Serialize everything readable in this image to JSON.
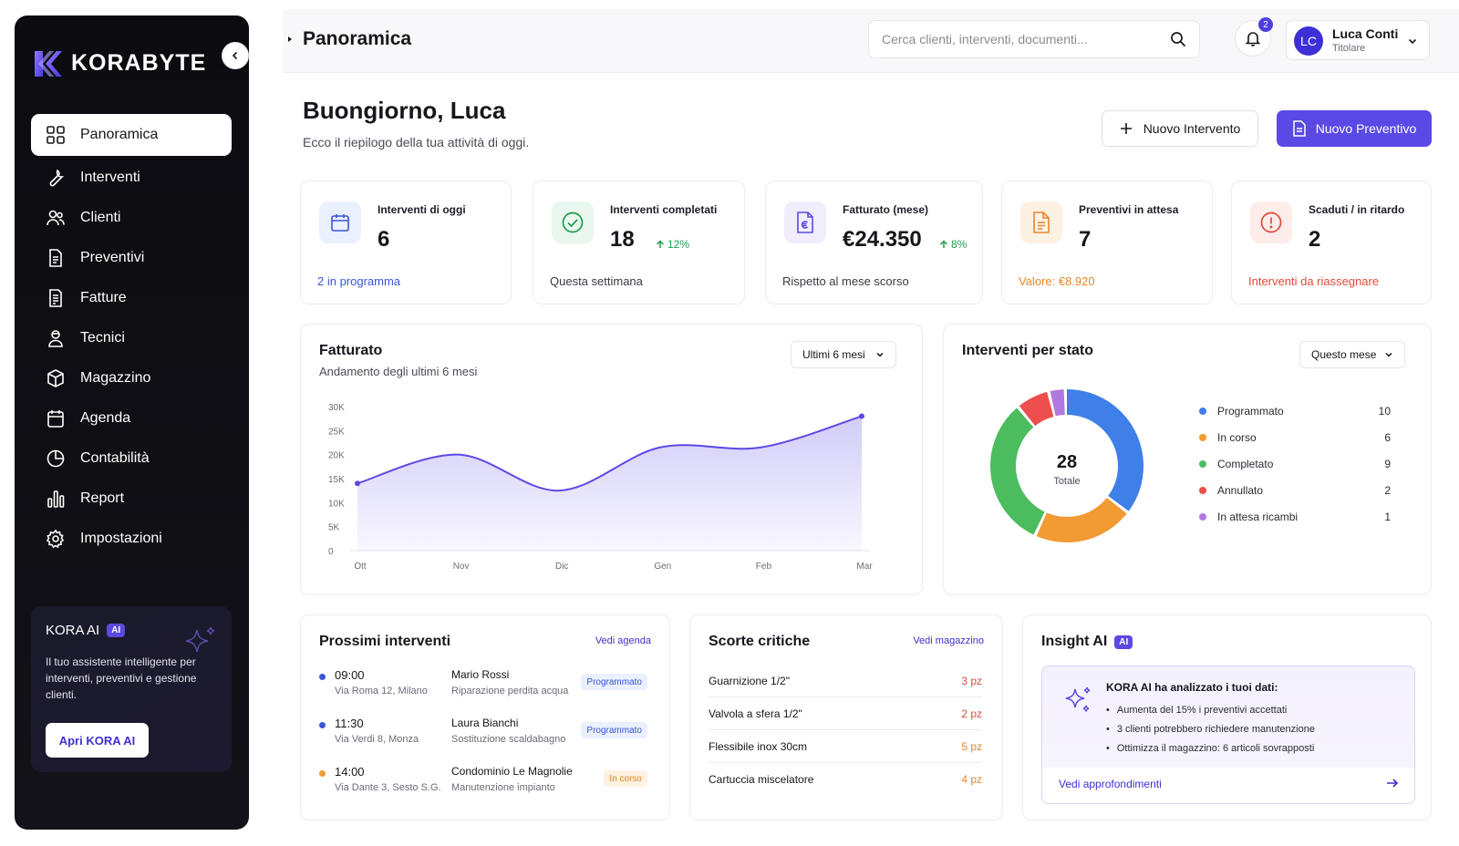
{
  "brand": {
    "name": "KORABYTE"
  },
  "sidebar": {
    "items": [
      {
        "label": "Panoramica",
        "icon": "grid-icon"
      },
      {
        "label": "Interventi",
        "icon": "wrench-icon"
      },
      {
        "label": "Clienti",
        "icon": "users-icon"
      },
      {
        "label": "Preventivi",
        "icon": "document-icon"
      },
      {
        "label": "Fatture",
        "icon": "invoice-icon"
      },
      {
        "label": "Tecnici",
        "icon": "technician-icon"
      },
      {
        "label": "Magazzino",
        "icon": "box-icon"
      },
      {
        "label": "Agenda",
        "icon": "calendar-icon"
      },
      {
        "label": "Contabilità",
        "icon": "pie-chart-icon"
      },
      {
        "label": "Report",
        "icon": "bar-chart-icon"
      },
      {
        "label": "Impostazioni",
        "icon": "gear-icon"
      }
    ],
    "ai_card": {
      "title": "KORA AI",
      "badge": "AI",
      "description": "Il tuo assistente intelligente per interventi, preventivi e gestione clienti.",
      "button": "Apri KORA AI"
    }
  },
  "header": {
    "title": "Panoramica",
    "search_placeholder": "Cerca clienti, interventi, documenti...",
    "notifications": "2",
    "user": {
      "initials": "LC",
      "name": "Luca Conti",
      "role": "Titolare"
    }
  },
  "greeting": {
    "title": "Buongiorno, Luca",
    "subtitle": "Ecco il riepilogo della tua attività di oggi.",
    "btn_new_intervention": "Nuovo Intervento",
    "btn_new_quote": "Nuovo Preventivo"
  },
  "stats": [
    {
      "label": "Interventi di oggi",
      "value": "6",
      "trend": "",
      "footer": "2 in programma",
      "footer_color": "#3a55d6",
      "icon": "calendar-icon"
    },
    {
      "label": "Interventi completati",
      "value": "18",
      "trend": "12%",
      "footer": "Questa settimana",
      "footer_color": "#3a3a46",
      "icon": "check-circle-icon"
    },
    {
      "label": "Fatturato (mese)",
      "value": "€24.350",
      "trend": "8%",
      "footer": "Rispetto al mese scorso",
      "footer_color": "#3a3a46",
      "icon": "euro-document-icon"
    },
    {
      "label": "Preventivi in attesa",
      "value": "7",
      "trend": "",
      "footer": "Valore: €8.920",
      "footer_color": "#e8862a",
      "icon": "document-icon"
    },
    {
      "label": "Scaduti / in ritardo",
      "value": "2",
      "trend": "",
      "footer": "Interventi da riassegnare",
      "footer_color": "#e04a3a",
      "icon": "alert-circle-icon"
    }
  ],
  "revenue_panel": {
    "title": "Fatturato",
    "subtitle": "Andamento degli ultimi 6 mesi",
    "range": "Ultimi 6 mesi"
  },
  "status_panel": {
    "title": "Interventi per stato",
    "range": "Questo mese",
    "total": "28",
    "total_label": "Totale"
  },
  "chart_data": [
    {
      "type": "area",
      "title": "Fatturato",
      "subtitle": "Andamento degli ultimi 6 mesi",
      "categories": [
        "Ott",
        "Nov",
        "Dic",
        "Gen",
        "Feb",
        "Mar"
      ],
      "series": [
        {
          "values": [
            14000,
            20000,
            12500,
            21500,
            21500,
            28000
          ]
        }
      ],
      "ylim": [
        0,
        30000
      ],
      "yticks": [
        "0",
        "5K",
        "10K",
        "15K",
        "20K",
        "25K",
        "30K"
      ],
      "grid": false,
      "color": "#5b49e6"
    },
    {
      "type": "pie",
      "title": "Interventi per stato",
      "labels": [
        "Programmato",
        "In corso",
        "Completato",
        "Annullato",
        "In attesa ricambi"
      ],
      "values": [
        10,
        6,
        9,
        2,
        1
      ],
      "colors": [
        "#3f7fe8",
        "#f29a33",
        "#4cbd5e",
        "#ee4e4e",
        "#b178e0"
      ],
      "total": 28,
      "legend": "right"
    }
  ],
  "upcoming": {
    "title": "Prossimi interventi",
    "link": "Vedi agenda",
    "items": [
      {
        "time": "09:00",
        "address": "Via Roma 12, Milano",
        "client": "Mario Rossi",
        "job": "Riparazione perdita acqua",
        "status": "Programmato",
        "dot": "#3a55d6",
        "badge_bg": "#eaf0fd",
        "badge_fg": "#3a55d6"
      },
      {
        "time": "11:30",
        "address": "Via Verdi 8, Monza",
        "client": "Laura Bianchi",
        "job": "Sostituzione scaldabagno",
        "status": "Programmato",
        "dot": "#3a55d6",
        "badge_bg": "#eaf0fd",
        "badge_fg": "#3a55d6"
      },
      {
        "time": "14:00",
        "address": "Via Dante 3, Sesto S.G.",
        "client": "Condominio Le Magnolie",
        "job": "Manutenzione impianto",
        "status": "In corso",
        "dot": "#f29a33",
        "badge_bg": "#fdf1e2",
        "badge_fg": "#e07f1c"
      }
    ]
  },
  "stock": {
    "title": "Scorte critiche",
    "link": "Vedi magazzino",
    "items": [
      {
        "name": "Guarnizione 1/2\"",
        "qty": "3 pz",
        "color": "#e04a3a"
      },
      {
        "name": "Valvola a sfera 1/2\"",
        "qty": "2 pz",
        "color": "#e04a3a"
      },
      {
        "name": "Flessibile inox 30cm",
        "qty": "5 pz",
        "color": "#e8862a"
      },
      {
        "name": "Cartuccia miscelatore",
        "qty": "4 pz",
        "color": "#e8862a"
      }
    ]
  },
  "insight": {
    "title": "Insight AI",
    "badge": "AI",
    "heading": "KORA AI ha analizzato i tuoi dati:",
    "points": [
      "Aumenta del 15% i preventivi accettati",
      "3 clienti potrebbero richiedere manutenzione",
      "Ottimizza il magazzino: 6 articoli sovrapposti"
    ],
    "link": "Vedi approfondimenti"
  }
}
